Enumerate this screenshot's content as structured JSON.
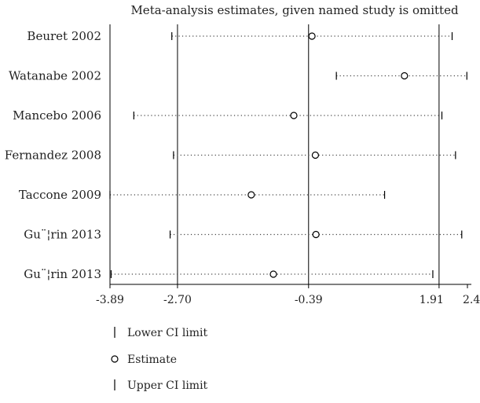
{
  "chart_data": {
    "type": "forest",
    "title": "Meta-analysis estimates, given named study is omitted",
    "xlim": [
      -3.89,
      2.41
    ],
    "x_ticks": [
      -3.89,
      -2.7,
      -0.39,
      1.91,
      2.41
    ],
    "x_tick_labels": [
      "-3.89",
      "-2.70",
      "-0.39",
      "1.91",
      "2.41"
    ],
    "reference_lines": [
      -2.7,
      -0.39,
      1.91
    ],
    "studies": [
      {
        "label": "Beuret 2002",
        "lower": -2.8,
        "estimate": -0.33,
        "upper": 2.14
      },
      {
        "label": "Watanabe 2002",
        "lower": 0.1,
        "estimate": 1.3,
        "upper": 2.4
      },
      {
        "label": "Mancebo 2006",
        "lower": -3.47,
        "estimate": -0.65,
        "upper": 1.96
      },
      {
        "label": "Fernandez 2008",
        "lower": -2.77,
        "estimate": -0.27,
        "upper": 2.2
      },
      {
        "label": "Taccone 2009",
        "lower": -3.89,
        "estimate": -1.4,
        "upper": 0.95
      },
      {
        "label": "Gu¨¦rin 2013",
        "lower": -2.83,
        "estimate": -0.26,
        "upper": 2.31
      },
      {
        "label": "Gu¨¦rin 2013",
        "lower": -3.87,
        "estimate": -1.01,
        "upper": 1.8
      }
    ],
    "legend": [
      {
        "symbol": "|",
        "label": "Lower CI limit"
      },
      {
        "symbol": "o",
        "label": "Estimate"
      },
      {
        "symbol": "|",
        "label": "Upper CI limit"
      }
    ]
  }
}
